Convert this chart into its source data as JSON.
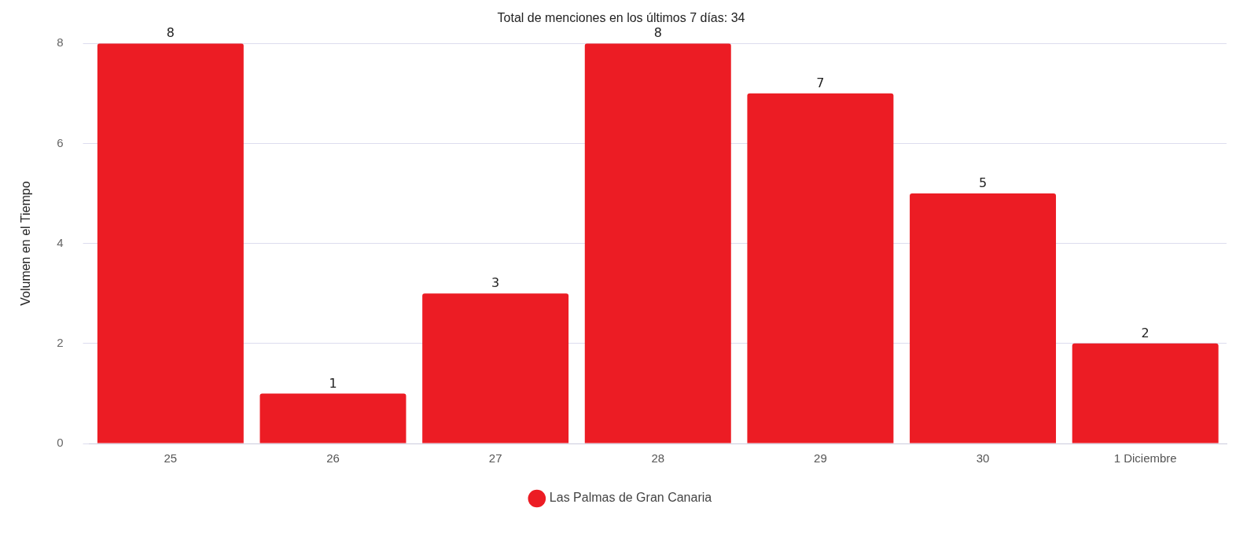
{
  "chart_data": {
    "type": "bar",
    "title": "Total de menciones en los últimos 7 días: 34",
    "ylabel": "Volumen en el Tiempo",
    "categories": [
      "25",
      "26",
      "27",
      "28",
      "29",
      "30",
      "1 Diciembre"
    ],
    "series": [
      {
        "name": "Las Palmas de Gran Canaria",
        "color": "#ec1c24",
        "values": [
          8,
          1,
          3,
          8,
          7,
          5,
          2
        ]
      }
    ],
    "ylim": [
      0,
      8
    ],
    "yticks": [
      0,
      2,
      4,
      6,
      8
    ],
    "grid": "y",
    "legend": "bottom",
    "marker": "circle",
    "data_labels": true
  }
}
